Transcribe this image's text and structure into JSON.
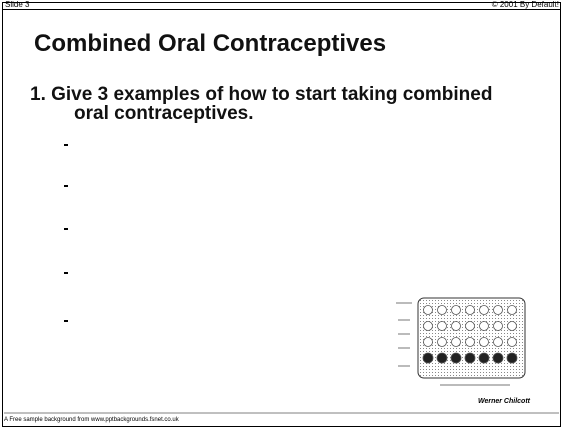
{
  "header": {
    "slide": "Slide 3",
    "copyright": "© 2001 By Default!"
  },
  "title": "Combined Oral Contraceptives",
  "question": "1. Give 3 examples of how to start taking combined oral contraceptives.",
  "image_credit": "Werner Chilcott",
  "footer": "A Free sample background from www.pptbackgrounds.fsnet.co.uk"
}
